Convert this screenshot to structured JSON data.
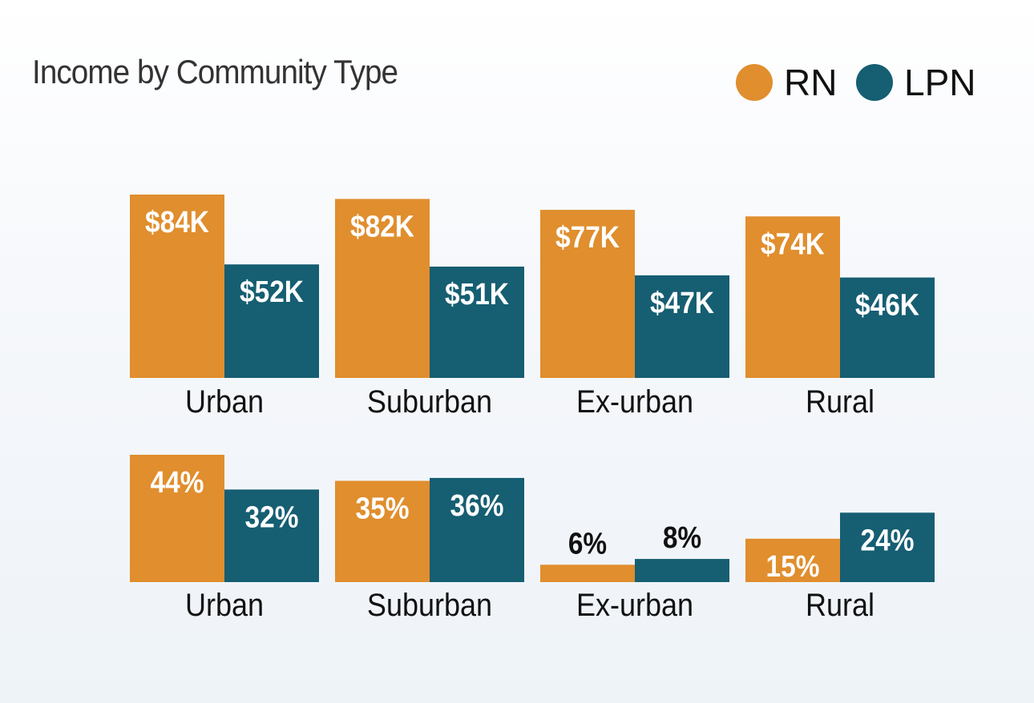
{
  "chart_data": [
    {
      "type": "bar",
      "title": "Income by Community Type",
      "categories": [
        "Urban",
        "Suburban",
        "Ex-urban",
        "Rural"
      ],
      "series": [
        {
          "name": "RN",
          "values": [
            84,
            82,
            77,
            74
          ],
          "labels": [
            "$84K",
            "$82K",
            "$77K",
            "$74K"
          ]
        },
        {
          "name": "LPN",
          "values": [
            52,
            51,
            47,
            46
          ],
          "labels": [
            "$52K",
            "$51K",
            "$47K",
            "$46K"
          ]
        }
      ],
      "unit": "thousand USD",
      "ylim": [
        0,
        84
      ],
      "grid": false,
      "legend": "top-right"
    },
    {
      "type": "bar",
      "categories": [
        "Urban",
        "Suburban",
        "Ex-urban",
        "Rural"
      ],
      "series": [
        {
          "name": "RN",
          "values": [
            44,
            35,
            6,
            15
          ],
          "labels": [
            "44%",
            "35%",
            "6%",
            "15%"
          ]
        },
        {
          "name": "LPN",
          "values": [
            32,
            36,
            8,
            24
          ],
          "labels": [
            "32%",
            "36%",
            "8%",
            "24%"
          ]
        }
      ],
      "unit": "percent",
      "ylim": [
        0,
        44
      ],
      "grid": false
    }
  ],
  "legend": [
    {
      "label": "RN",
      "color": "#e08e2e"
    },
    {
      "label": "LPN",
      "color": "#165e72"
    }
  ],
  "colors": {
    "RN": "#e08e2e",
    "LPN": "#165e72"
  }
}
